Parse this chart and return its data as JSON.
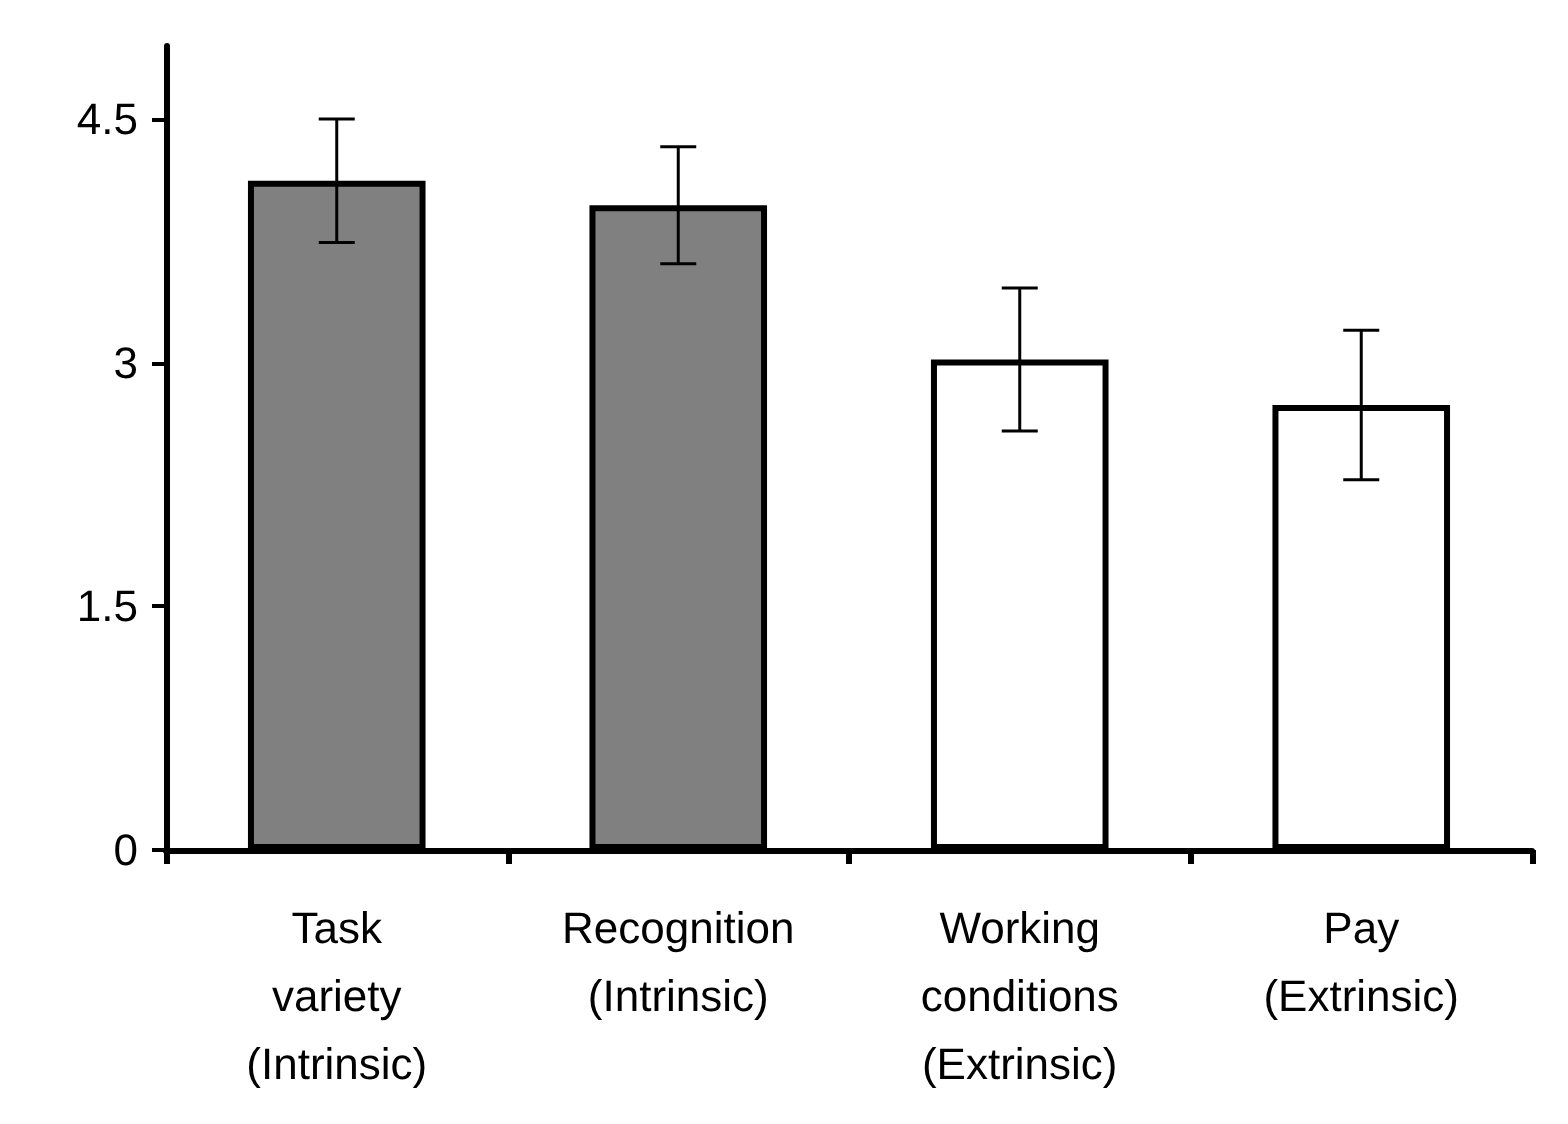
{
  "chart_data": {
    "type": "bar",
    "categories": [
      "Task\nvariety\n(Intrinsic)",
      "Recognition\n(Intrinsic)",
      "Working\nconditions\n(Extrinsic)",
      "Pay\n(Extrinsic)"
    ],
    "values": [
      4.12,
      3.97,
      3.02,
      2.74
    ],
    "errors": [
      0.38,
      0.36,
      0.44,
      0.46
    ],
    "colors": [
      "#808080",
      "#808080",
      "#ffffff",
      "#ffffff"
    ],
    "ylim": [
      0,
      4.95
    ],
    "yticks": [
      0,
      1.5,
      3,
      4.5
    ],
    "grid": false
  }
}
